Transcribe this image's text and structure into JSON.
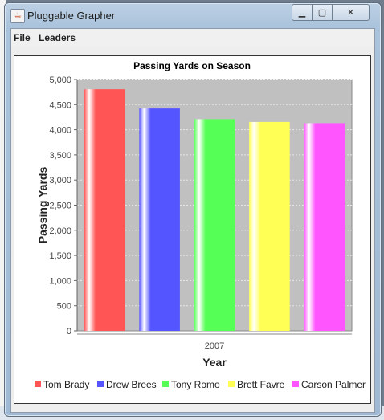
{
  "window": {
    "title": "Pluggable Grapher",
    "icon": "java-cup-icon",
    "controls": {
      "minimize": "minimize-icon",
      "maximize": "maximize-icon",
      "close": "close-icon"
    }
  },
  "menu": [
    {
      "label": "File"
    },
    {
      "label": "Leaders"
    }
  ],
  "colors": {
    "plot_background": "#c0c0c0",
    "gridline": "#e6e6e6"
  },
  "chart_data": {
    "type": "bar",
    "title": "Passing Yards on Season",
    "xlabel": "Year",
    "ylabel": "Passing Yards",
    "categories": [
      "2007"
    ],
    "ylim": [
      0,
      5000
    ],
    "y_ticks": [
      "0",
      "500",
      "1,000",
      "1,500",
      "2,000",
      "2,500",
      "3,000",
      "3,500",
      "4,000",
      "4,500",
      "5,000"
    ],
    "grid": true,
    "legend_position": "bottom",
    "series": [
      {
        "name": "Tom Brady",
        "values": [
          4806
        ],
        "color": "#ff5555"
      },
      {
        "name": "Drew Brees",
        "values": [
          4423
        ],
        "color": "#5555ff"
      },
      {
        "name": "Tony Romo",
        "values": [
          4211
        ],
        "color": "#55ff55"
      },
      {
        "name": "Brett Favre",
        "values": [
          4155
        ],
        "color": "#ffff55"
      },
      {
        "name": "Carson Palmer",
        "values": [
          4131
        ],
        "color": "#ff55ff"
      }
    ]
  }
}
